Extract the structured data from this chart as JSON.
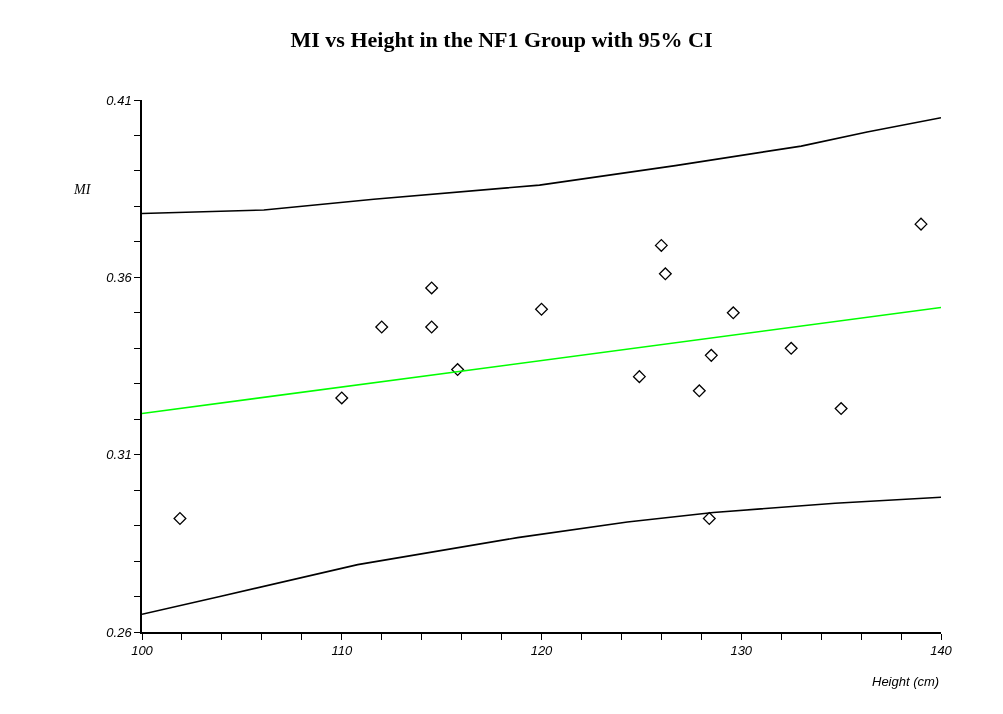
{
  "chart_data": {
    "type": "scatter",
    "title": "MI vs Height in the NF1 Group with 95% CI",
    "xlabel": "Height (cm)",
    "ylabel": "MI",
    "xlim": [
      100,
      140
    ],
    "ylim": [
      0.26,
      0.41
    ],
    "xticks": [
      100,
      {
        "value": 102,
        "label": null
      },
      {
        "value": 104,
        "label": null
      },
      {
        "value": 106,
        "label": null
      },
      {
        "value": 108,
        "label": null
      },
      110,
      {
        "value": 112,
        "label": null
      },
      {
        "value": 114,
        "label": null
      },
      {
        "value": 116,
        "label": null
      },
      {
        "value": 118,
        "label": null
      },
      120,
      {
        "value": 122,
        "label": null
      },
      {
        "value": 124,
        "label": null
      },
      {
        "value": 126,
        "label": null
      },
      {
        "value": 128,
        "label": null
      },
      130,
      {
        "value": 132,
        "label": null
      },
      {
        "value": 134,
        "label": null
      },
      {
        "value": 136,
        "label": null
      },
      {
        "value": 138,
        "label": null
      },
      140
    ],
    "yticks": [
      0.26,
      {
        "value": 0.27,
        "label": null
      },
      {
        "value": 0.28,
        "label": null
      },
      {
        "value": 0.29,
        "label": null
      },
      {
        "value": 0.3,
        "label": null
      },
      0.31,
      {
        "value": 0.32,
        "label": null
      },
      {
        "value": 0.33,
        "label": null
      },
      {
        "value": 0.34,
        "label": null
      },
      {
        "value": 0.35,
        "label": null
      },
      0.36,
      {
        "value": 0.37,
        "label": null
      },
      {
        "value": 0.38,
        "label": null
      },
      {
        "value": 0.39,
        "label": null
      },
      {
        "value": 0.4,
        "label": null
      },
      0.41
    ],
    "series": [
      {
        "marker": "diamond",
        "color": "#000000",
        "x": [
          101.9,
          110,
          112,
          114.5,
          114.5,
          115.8,
          120,
          124.9,
          126,
          126.2,
          127.9,
          128.5,
          128.4,
          129.6,
          132.5,
          135,
          139
        ],
        "values": [
          0.292,
          0.326,
          0.346,
          0.357,
          0.346,
          0.334,
          0.351,
          0.332,
          0.369,
          0.361,
          0.328,
          0.338,
          0.292,
          0.35,
          0.34,
          0.323,
          0.375
        ]
      },
      {
        "type": "line",
        "marker": "none",
        "line_style": "solid",
        "color": "#00ff00",
        "x": [
          100,
          140
        ],
        "values": [
          0.3216,
          0.3515
        ]
      },
      {
        "type": "line",
        "marker": "none",
        "line_style": "solid",
        "color": "#000000",
        "x": [
          100,
          106.1,
          111.6,
          119.9,
          126.7,
          133,
          136.3,
          140
        ],
        "values": [
          0.378,
          0.379,
          0.382,
          0.386,
          0.3915,
          0.397,
          0.401,
          0.405
        ]
      },
      {
        "type": "line",
        "marker": "none",
        "line_style": "solid",
        "color": "#000000",
        "x": [
          100,
          103.9,
          110.8,
          118.8,
          124.3,
          128.6,
          134.7,
          140
        ],
        "values": [
          0.265,
          0.27,
          0.279,
          0.2866,
          0.291,
          0.2937,
          0.2963,
          0.298
        ]
      }
    ]
  }
}
